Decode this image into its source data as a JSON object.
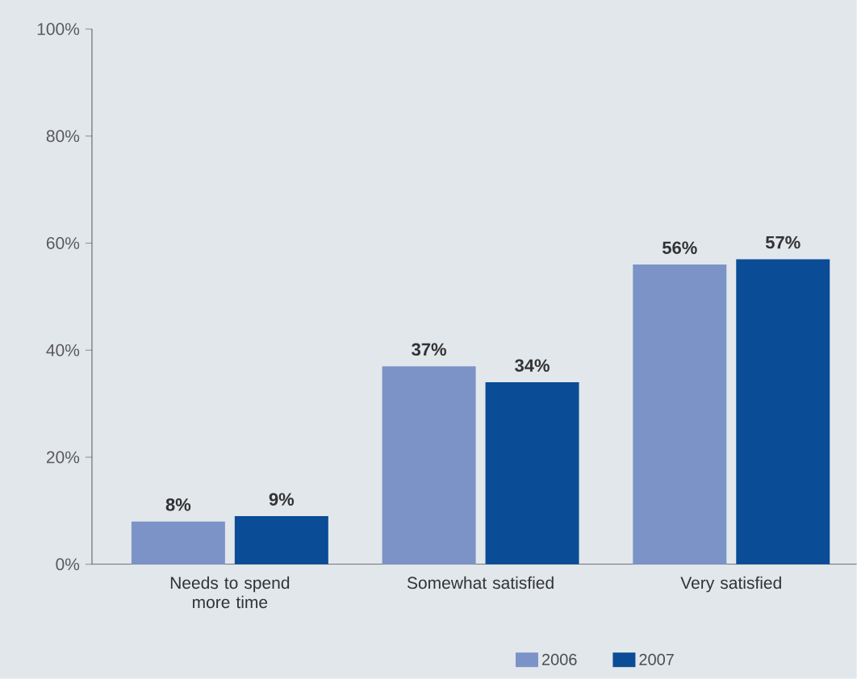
{
  "chart_data": {
    "type": "bar",
    "categories": [
      "Needs to spend more time",
      "Somewhat satisfied",
      "Very satisfied"
    ],
    "series": [
      {
        "name": "2006",
        "color": "#7b93c6",
        "values": [
          8,
          37,
          56
        ],
        "value_labels": [
          "8%",
          "37%",
          "56%"
        ]
      },
      {
        "name": "2007",
        "color": "#0a4c96",
        "values": [
          9,
          34,
          57
        ],
        "value_labels": [
          "9%",
          "34%",
          "57%"
        ]
      }
    ],
    "ylim": [
      0,
      100
    ],
    "yticks": [
      {
        "value": 0,
        "label": "0%"
      },
      {
        "value": 20,
        "label": "20%"
      },
      {
        "value": 40,
        "label": "40%"
      },
      {
        "value": 60,
        "label": "60%"
      },
      {
        "value": 80,
        "label": "80%"
      },
      {
        "value": 100,
        "label": "100%"
      }
    ],
    "grid": false,
    "legend": "bottom"
  }
}
